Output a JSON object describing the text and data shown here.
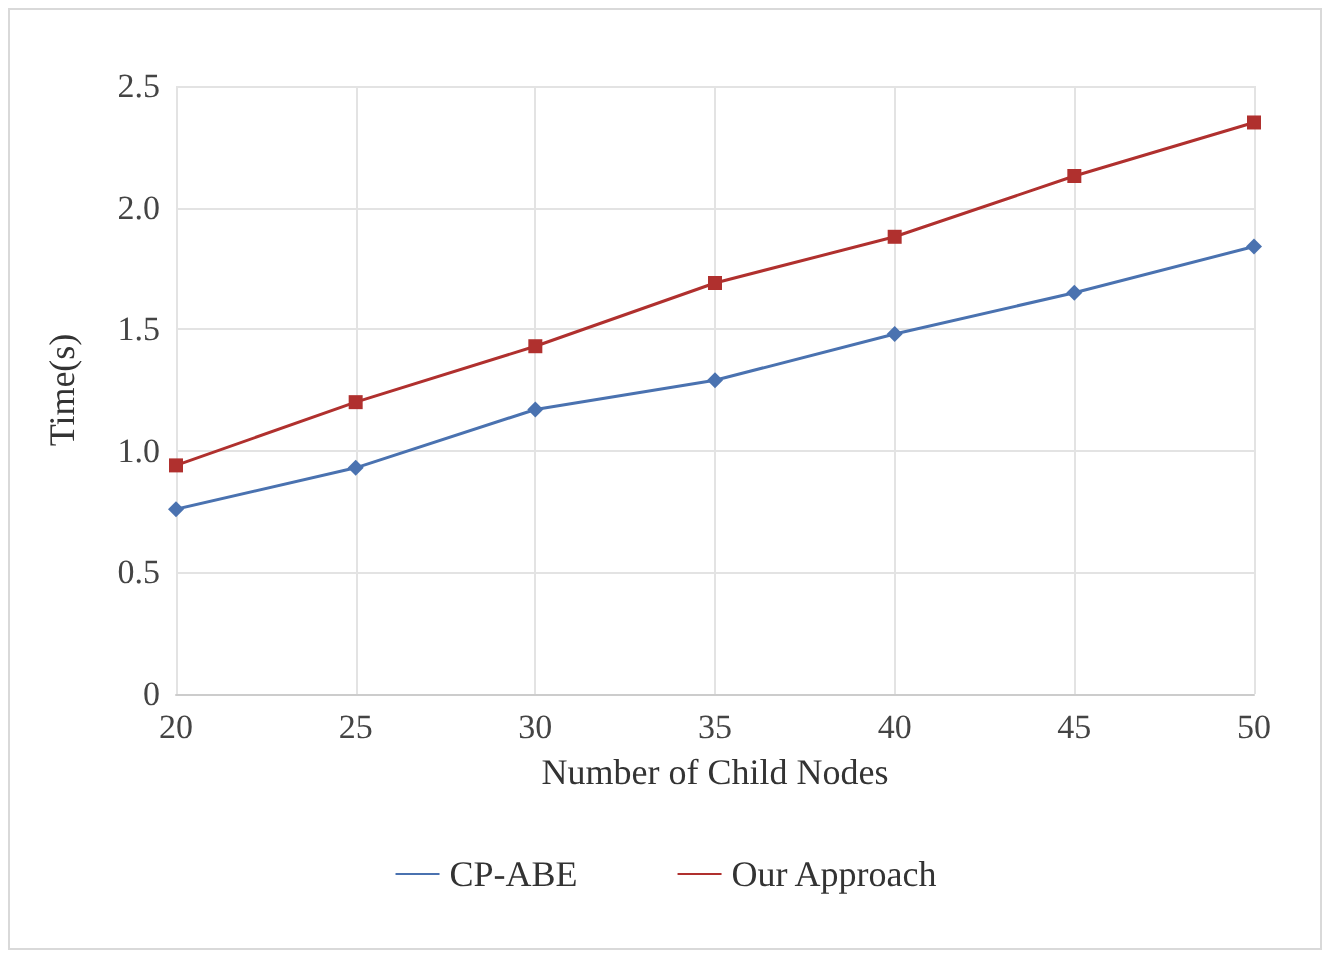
{
  "chart_data": {
    "type": "line",
    "xlabel": "Number of Child Nodes",
    "ylabel": "Time(s)",
    "x": [
      20,
      25,
      30,
      35,
      40,
      45,
      50
    ],
    "series": [
      {
        "name": "CP-ABE",
        "color": "#4a72b0",
        "marker": "diamond",
        "values": [
          0.76,
          0.93,
          1.17,
          1.29,
          1.48,
          1.65,
          1.84
        ]
      },
      {
        "name": "Our Approach",
        "color": "#b0302e",
        "marker": "square",
        "values": [
          0.94,
          1.2,
          1.43,
          1.69,
          1.88,
          2.13,
          2.35
        ]
      }
    ],
    "xlim": [
      20,
      50
    ],
    "xticks": [
      20,
      25,
      30,
      35,
      40,
      45,
      50
    ],
    "ylim": [
      0,
      2.5
    ],
    "yticks": [
      0,
      0.5,
      {
        "value": 1,
        "label": "1.0"
      },
      1.5,
      {
        "value": 2,
        "label": "2.0"
      },
      2.5
    ],
    "grid": true,
    "legend": "bottom",
    "line_style": "solid"
  }
}
